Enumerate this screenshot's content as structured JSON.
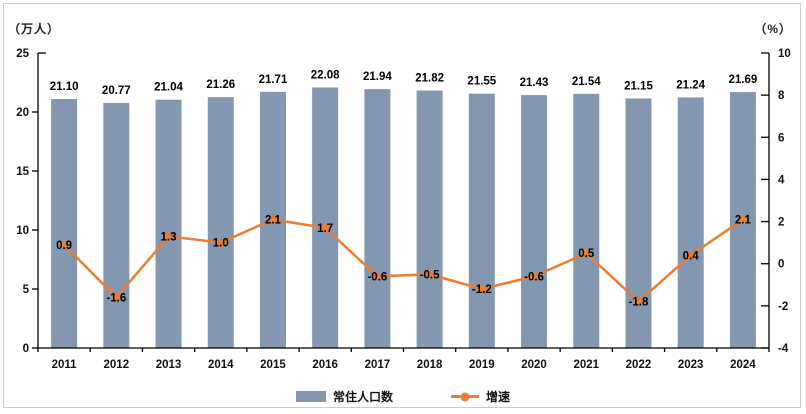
{
  "chart_data": {
    "type": "bar",
    "subtype": "bar-line-combo",
    "title": "",
    "categories": [
      "2011",
      "2012",
      "2013",
      "2014",
      "2015",
      "2016",
      "2017",
      "2018",
      "2019",
      "2020",
      "2021",
      "2022",
      "2023",
      "2024"
    ],
    "series": [
      {
        "name": "常住人口数",
        "type": "bar",
        "axis": "left",
        "color": "#8497B0",
        "values": [
          21.1,
          20.77,
          21.04,
          21.26,
          21.71,
          22.08,
          21.94,
          21.82,
          21.55,
          21.43,
          21.54,
          21.15,
          21.24,
          21.69
        ],
        "labels": [
          "21.10",
          "20.77",
          "21.04",
          "21.26",
          "21.71",
          "22.08",
          "21.94",
          "21.82",
          "21.55",
          "21.43",
          "21.54",
          "21.15",
          "21.24",
          "21.69"
        ]
      },
      {
        "name": "增速",
        "type": "line",
        "axis": "right",
        "color": "#ED7D31",
        "values": [
          0.9,
          -1.6,
          1.3,
          1.0,
          2.1,
          1.7,
          -0.6,
          -0.5,
          -1.2,
          -0.6,
          0.5,
          -1.8,
          0.4,
          2.1
        ],
        "labels": [
          "0.9",
          "-1.6",
          "1.3",
          "1.0",
          "2.1",
          "1.7",
          "-0.6",
          "-0.5",
          "-1.2",
          "-0.6",
          "0.5",
          "-1.8",
          "0.4",
          "2.1"
        ]
      }
    ],
    "left_axis": {
      "unit_label": "（万人）",
      "min": 0,
      "max": 25,
      "step": 5,
      "ticks": [
        "25",
        "20",
        "15",
        "10",
        "5",
        "0"
      ]
    },
    "right_axis": {
      "unit_label": "（%）",
      "min": -4,
      "max": 10,
      "step": 2,
      "ticks": [
        "10",
        "8",
        "6",
        "4",
        "2",
        "0",
        "-2",
        "-4"
      ]
    },
    "grid": false,
    "legend_position": "bottom",
    "axis_color": "#000000",
    "label_color": "#000000"
  }
}
